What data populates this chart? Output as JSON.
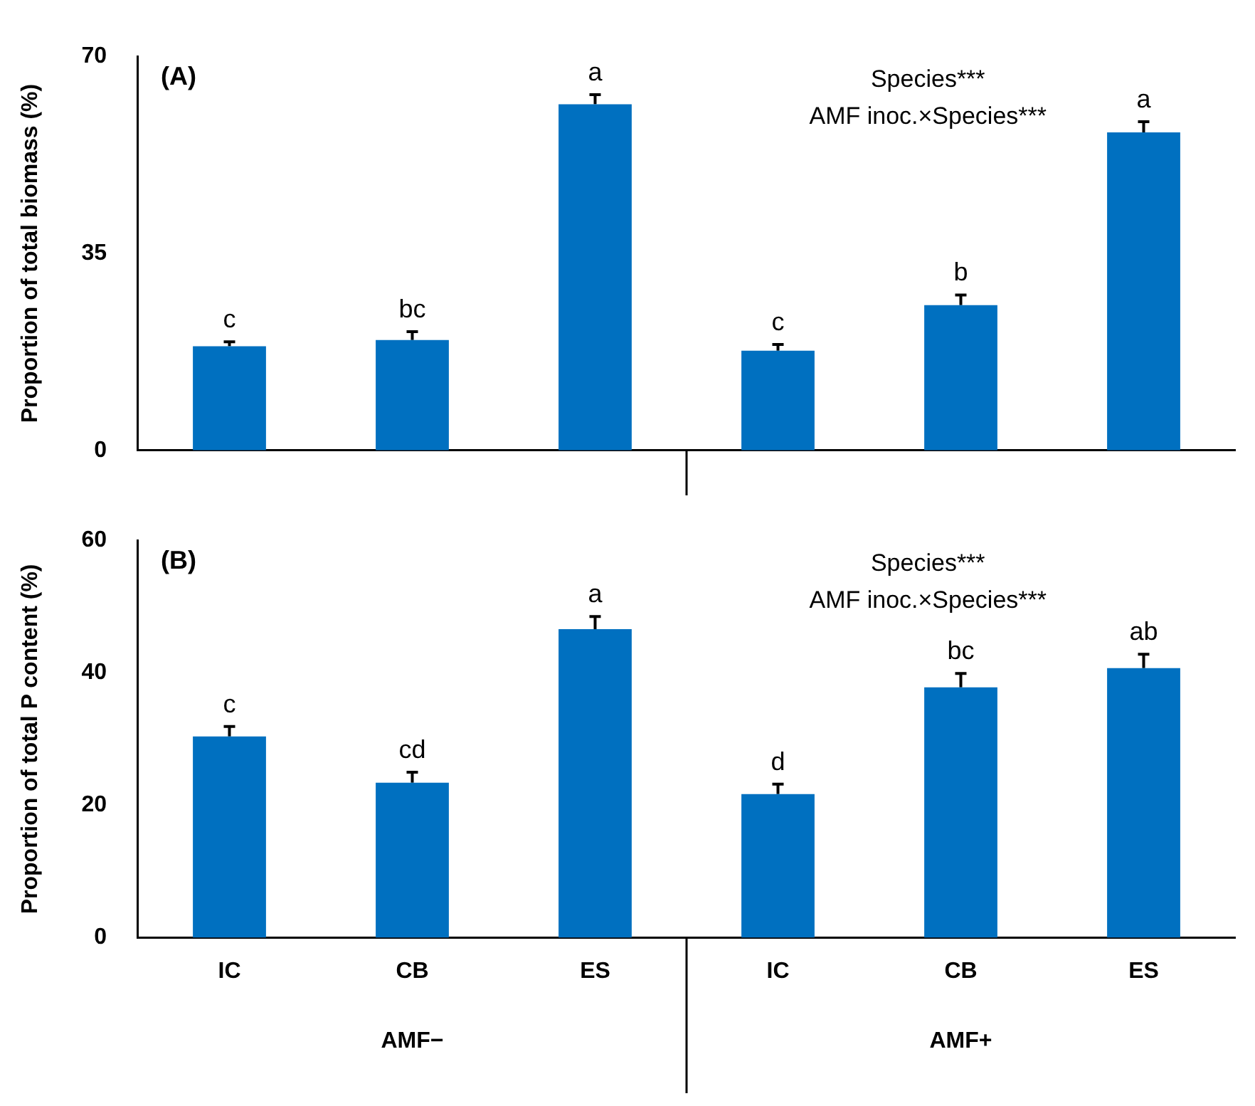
{
  "chart_data": [
    {
      "type": "bar",
      "title": "(A)",
      "ylabel": "Proportion of total biomass (%)",
      "categories": [
        null,
        null,
        null,
        null,
        null,
        null
      ],
      "values": [
        18.5,
        19.6,
        61.5,
        17.7,
        25.8,
        56.5
      ],
      "errors": [
        [
          18.5,
          19.3
        ],
        [
          19.6,
          21.1
        ],
        [
          61.5,
          63.2
        ],
        [
          17.7,
          18.8
        ],
        [
          25.8,
          27.6
        ],
        [
          56.5,
          58.4
        ]
      ],
      "value_labels": [
        "c",
        "bc",
        "a",
        "c",
        "b",
        "a"
      ],
      "color": "#0070c0",
      "ylim": [
        0,
        70
      ],
      "yticks": [
        0,
        35,
        70
      ],
      "grid": false,
      "legend": false,
      "tick_labels": "y",
      "annotations": [
        "Species***",
        "AMF inoc.×Species***"
      ]
    },
    {
      "type": "bar",
      "title": "(B)",
      "ylabel": "Proportion of total P content (%)",
      "categories": [
        "IC",
        "CB",
        "ES",
        "IC",
        "CB",
        "ES"
      ],
      "values": [
        30.4,
        23.4,
        46.6,
        21.7,
        37.8,
        40.7
      ],
      "errors": [
        [
          30.4,
          31.9
        ],
        [
          23.4,
          25.0
        ],
        [
          46.6,
          48.5
        ],
        [
          21.7,
          23.2
        ],
        [
          37.8,
          39.9
        ],
        [
          40.7,
          42.8
        ]
      ],
      "value_labels": [
        "c",
        "cd",
        "a",
        "d",
        "bc",
        "ab"
      ],
      "color": "#0070c0",
      "ylim": [
        0,
        60
      ],
      "yticks": [
        0,
        20,
        40,
        60
      ],
      "grid": false,
      "legend": false,
      "annotations": [
        "Species***",
        "AMF inoc.×Species***",
        "AMF−",
        "AMF+"
      ]
    }
  ]
}
